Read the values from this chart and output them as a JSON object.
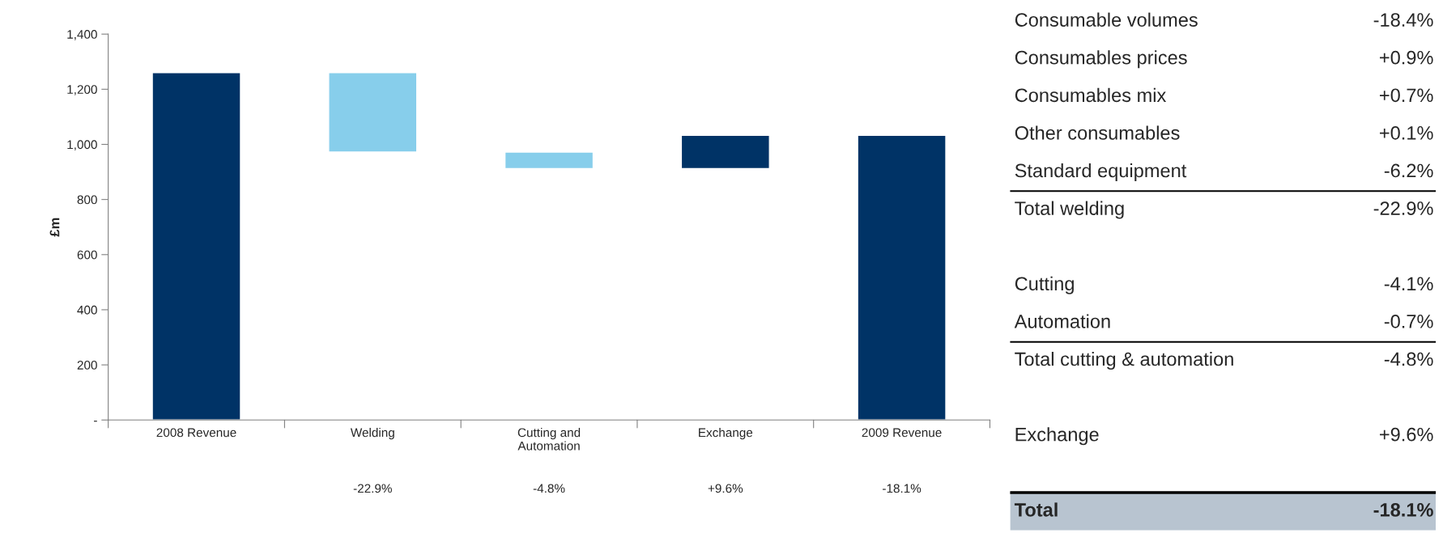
{
  "chart_data": [
    {
      "type": "bar",
      "ylabel": "£m",
      "categories": [
        "2008 Revenue",
        "Welding",
        "Cutting and\nAutomation",
        "Exchange",
        "2009 Revenue"
      ],
      "values": [
        1260,
        -288,
        -60,
        121,
        1033
      ],
      "base": [
        0,
        1260,
        972,
        912,
        0
      ],
      "colors": [
        "#003366",
        "#87ceeb",
        "#87ceeb",
        "#003366",
        "#003366"
      ],
      "ylim": [
        0,
        1400
      ],
      "yticks": [
        {
          "value": 0,
          "label": "-"
        },
        200,
        400,
        600,
        800,
        {
          "value": 1000,
          "label": "1,000"
        },
        {
          "value": 1200,
          "label": "1,200"
        },
        {
          "value": 1400,
          "label": "1,400"
        }
      ],
      "grid": false,
      "legend": false,
      "annotations": [
        "-22.9%",
        "-4.8%",
        "+9.6%",
        "-18.1%"
      ]
    },
    {
      "type": "other",
      "categories": [
        "Consumable volumes",
        "Consumables prices",
        "Consumables mix",
        "Other consumables",
        "Standard equipment",
        "Total welding",
        null,
        "Cutting",
        "Automation",
        "Total cutting & automation",
        null,
        "Exchange",
        null,
        "Total"
      ],
      "value_labels": [
        "-18.4%",
        "+0.9%",
        "+0.7%",
        "+0.1%",
        "-6.2%",
        "-22.9%",
        null,
        "-4.1%",
        "-0.7%",
        "-4.8%",
        null,
        "+9.6%",
        null,
        "-18.1%"
      ],
      "color": "#b8c4d0"
    }
  ]
}
